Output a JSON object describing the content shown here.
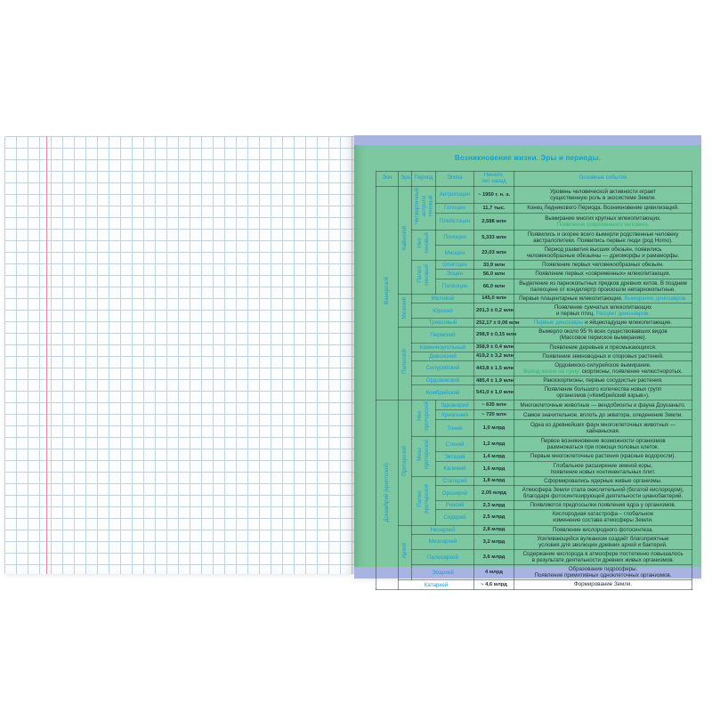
{
  "colors": {
    "page_green": "#7dc7a1",
    "lavender_strip": "#a9b3e2",
    "accent_blue": "#1b9cd6",
    "accent_green": "#2fb571",
    "text_dark": "#1e2c34",
    "grid_blue": "#bed3e6",
    "margin_red": "#e8899b"
  },
  "page": {
    "title": "Возникновение жизни. Эры и периоды."
  },
  "table": {
    "headers": [
      "Эон",
      "Эра",
      "Период",
      "Эпоха",
      "Начало,\nлет назад",
      "Основные события"
    ],
    "eons": [
      {
        "label": "Фанерозой",
        "from": 0,
        "to": 16
      },
      {
        "label": "Докембрий (криптозой)",
        "from": 17,
        "to": 31
      }
    ],
    "eras": [
      {
        "label": "Кайнозой",
        "from": 0,
        "to": 7
      },
      {
        "label": "Мезозой",
        "from": 8,
        "to": 10
      },
      {
        "label": "Палеозой",
        "from": 11,
        "to": 16
      },
      {
        "label": "Протерозой",
        "from": 17,
        "to": 26
      },
      {
        "label": "Архей",
        "from": 27,
        "to": 30
      }
    ],
    "periods": [
      {
        "label": "Четвертичный\nантропо\nгеновый",
        "from": 0,
        "to": 2
      },
      {
        "label": "Нео\nгеновый",
        "from": 3,
        "to": 4
      },
      {
        "label": "Палео\nгеновый",
        "from": 5,
        "to": 7
      },
      {
        "label": "Нео\nпротерозой",
        "from": 17,
        "to": 19
      },
      {
        "label": "Мезо\nпротерозой",
        "from": 20,
        "to": 22
      },
      {
        "label": "Палео\nпротерозой",
        "from": 23,
        "to": 26
      }
    ],
    "rows": [
      {
        "epoch": "Антропоцен",
        "start": "~ 1950 г. н. э.",
        "event": [
          {
            "t": "Уровень человеческой активности играет\nсущественную роль в экосистеме Земли.",
            "c": "d"
          }
        ]
      },
      {
        "epoch": "Голоцен",
        "start": "11,7 тыс.",
        "event": [
          {
            "t": "Конец Ледникового Периода. Возникновение цивилизаций.",
            "c": "d"
          }
        ]
      },
      {
        "epoch": "Плейстоцен",
        "start": "2,588 млн",
        "event": [
          {
            "t": "Вымирание многих крупных млекопитающих.\n",
            "c": "d"
          },
          {
            "t": "Появление современного человека.",
            "c": "g"
          }
        ]
      },
      {
        "epoch": "Плиоцен",
        "start": "5,333 млн",
        "event": [
          {
            "t": "Появились и скорее всего вымерли родственные человеку\nавстралопитеки. Появились первые люди (род Homo).",
            "c": "d"
          }
        ]
      },
      {
        "epoch": "Миоцен",
        "start": "23,03 млн",
        "event": [
          {
            "t": "Период развития высших обезьян, появились\nчеловекообразные обезьяны — дриоморфы и рамаморфы.",
            "c": "d"
          }
        ]
      },
      {
        "epoch": "Олигоцен",
        "start": "33,9 млн",
        "event": [
          {
            "t": "Появление первых человекообразных обезьян.",
            "c": "d"
          }
        ]
      },
      {
        "epoch": "Эоцен",
        "start": "56,0 млн",
        "event": [
          {
            "t": "Появление первых «современных» млекопитающих.",
            "c": "d"
          }
        ]
      },
      {
        "epoch": "Палеоцен",
        "start": "66,0 млн",
        "event": [
          {
            "t": "Выделение из парнокопытных предков древних китов. В позднем\nпалеоцене от кондиляртр произошли непарнокопытные.",
            "c": "d"
          }
        ]
      },
      {
        "epoch": "Меловой",
        "span": "pe",
        "start": "145,0 млн",
        "event": [
          {
            "t": "Первые плацентарные млекопитающие. ",
            "c": "d"
          },
          {
            "t": "Вымирание динозавров.",
            "c": "b"
          }
        ]
      },
      {
        "epoch": "Юрский",
        "span": "pe",
        "start": "201,3 ± 0,2 млн",
        "event": [
          {
            "t": "Появление сумчатых млекопитающих\nи первых птиц. ",
            "c": "d"
          },
          {
            "t": "Расцвет динозавров.",
            "c": "b"
          }
        ]
      },
      {
        "epoch": "Триасовый",
        "span": "pe",
        "start": "252,17 ± 0,06 млн",
        "event": [
          {
            "t": "Первые динозавры",
            "c": "b"
          },
          {
            "t": " и яйцекладущие млекопитающие.",
            "c": "d"
          }
        ]
      },
      {
        "epoch": "Пермский",
        "span": "pe",
        "start": "298,9 ± 0,15 млн",
        "event": [
          {
            "t": "Вымерло около 95 % всех существовавших видов\n(Массовое пермское вымирание).",
            "c": "d"
          }
        ]
      },
      {
        "epoch": "Каменноугольный",
        "span": "pe",
        "start": "358,9 ± 0,4 млн",
        "event": [
          {
            "t": "Появление деревьев и пресмыкающихся.",
            "c": "d"
          }
        ]
      },
      {
        "epoch": "Девонский",
        "span": "pe",
        "start": "419,2 ± 3,2 млн",
        "event": [
          {
            "t": "Появление земноводных и споровых растений.",
            "c": "d"
          }
        ]
      },
      {
        "epoch": "Силурийский",
        "span": "pe",
        "start": "443,8 ± 1,5 млн",
        "event": [
          {
            "t": "Ордовикско-силурийское вымирание.\n",
            "c": "d"
          },
          {
            "t": "Выход жизни на сушу:",
            "c": "g"
          },
          {
            "t": " скорпионы; появление челюстноротых.",
            "c": "d"
          }
        ]
      },
      {
        "epoch": "Ордовикский",
        "span": "pe",
        "start": "485,4 ± 1,9 млн",
        "event": [
          {
            "t": "Ракоскорпионы, первые сосудистые растения.",
            "c": "d"
          }
        ]
      },
      {
        "epoch": "Кембрийский",
        "span": "pe",
        "start": "541,0 ± 1,0 млн",
        "event": [
          {
            "t": "Появление большого количества новых групп\nорганизмов («Кембрийский взрыв»).",
            "c": "d"
          }
        ]
      },
      {
        "epoch": "Эдиакарий",
        "start": "~ 635 млн",
        "event": [
          {
            "t": "Многоклеточные животные — вендобионты и фауна Доушаньто.",
            "c": "d"
          }
        ]
      },
      {
        "epoch": "Криогений",
        "start": "~ 720 млн",
        "event": [
          {
            "t": "Самое значительное, вплоть до экватора, оледенение Земли.",
            "c": "d"
          }
        ]
      },
      {
        "epoch": "Тоний",
        "start": "1,0 млрд",
        "event": [
          {
            "t": "Одна из древнейших фаун многоклеточных животных — хайнаньская.",
            "c": "d"
          }
        ]
      },
      {
        "epoch": "Стений",
        "start": "1,2 млрд",
        "event": [
          {
            "t": "Первое возникновение возможности организмов\nразмножаться при помощи половых клеток.",
            "c": "d"
          }
        ]
      },
      {
        "epoch": "Эктазий",
        "start": "1,4 млрд",
        "event": [
          {
            "t": "Первые многоклеточные растения (красные водоросли).",
            "c": "d"
          }
        ]
      },
      {
        "epoch": "Калимий",
        "start": "1,6 млрд",
        "event": [
          {
            "t": "Глобальное расширение земной коры,\nпоявление новых континентальных плит.",
            "c": "d"
          }
        ]
      },
      {
        "epoch": "Статерий",
        "start": "1,8 млрд",
        "event": [
          {
            "t": "Сформировались ядерные живые организмы.",
            "c": "d"
          }
        ]
      },
      {
        "epoch": "Орозирий",
        "start": "2,05 млрд",
        "event": [
          {
            "t": "Атмосфера Земли стала окислительной (богатой кислородом),\nблагодаря фотосинтезирующей деятельности цианобактерий.",
            "c": "d"
          }
        ]
      },
      {
        "epoch": "Риасий",
        "start": "2,3 млрд",
        "event": [
          {
            "t": "Появляются предпосылки появления ядра у организмов.",
            "c": "d"
          }
        ]
      },
      {
        "epoch": "Сидерий",
        "start": "2,5 млрд",
        "event": [
          {
            "t": "Кислородная катастрофа – глобальное\nизменение состава атмосферы Земли.",
            "c": "d"
          }
        ]
      },
      {
        "epoch": "Неоархей",
        "span": "pe",
        "start": "2,8 млрд",
        "event": [
          {
            "t": "Появление кислородного фотосинтеза.",
            "c": "d"
          }
        ]
      },
      {
        "epoch": "Мезоархей",
        "span": "pe",
        "start": "3,2 млрд",
        "event": [
          {
            "t": "Усиливающийся вулканизм создаёт благоприятные\nусловия для эволюции древних архей и бактерий.",
            "c": "d"
          }
        ]
      },
      {
        "epoch": "Палеоархей",
        "span": "pe",
        "start": "3,6 млрд",
        "event": [
          {
            "t": "Содержание кислорода в атмосфере постепенно повышалось\nв результате деятельности древних живых организмов.",
            "c": "d"
          }
        ]
      },
      {
        "epoch": "Эоархей",
        "span": "pe",
        "start": "4 млрд",
        "event": [
          {
            "t": "Образование гидросферы.\nПоявление примитивных одноклеточных организмов.",
            "c": "d"
          }
        ]
      },
      {
        "epoch": "Катархей",
        "span": "epe",
        "start": "~ 4,6 млрд",
        "event": [
          {
            "t": "Формирование Земли.",
            "c": "d"
          }
        ]
      }
    ]
  }
}
